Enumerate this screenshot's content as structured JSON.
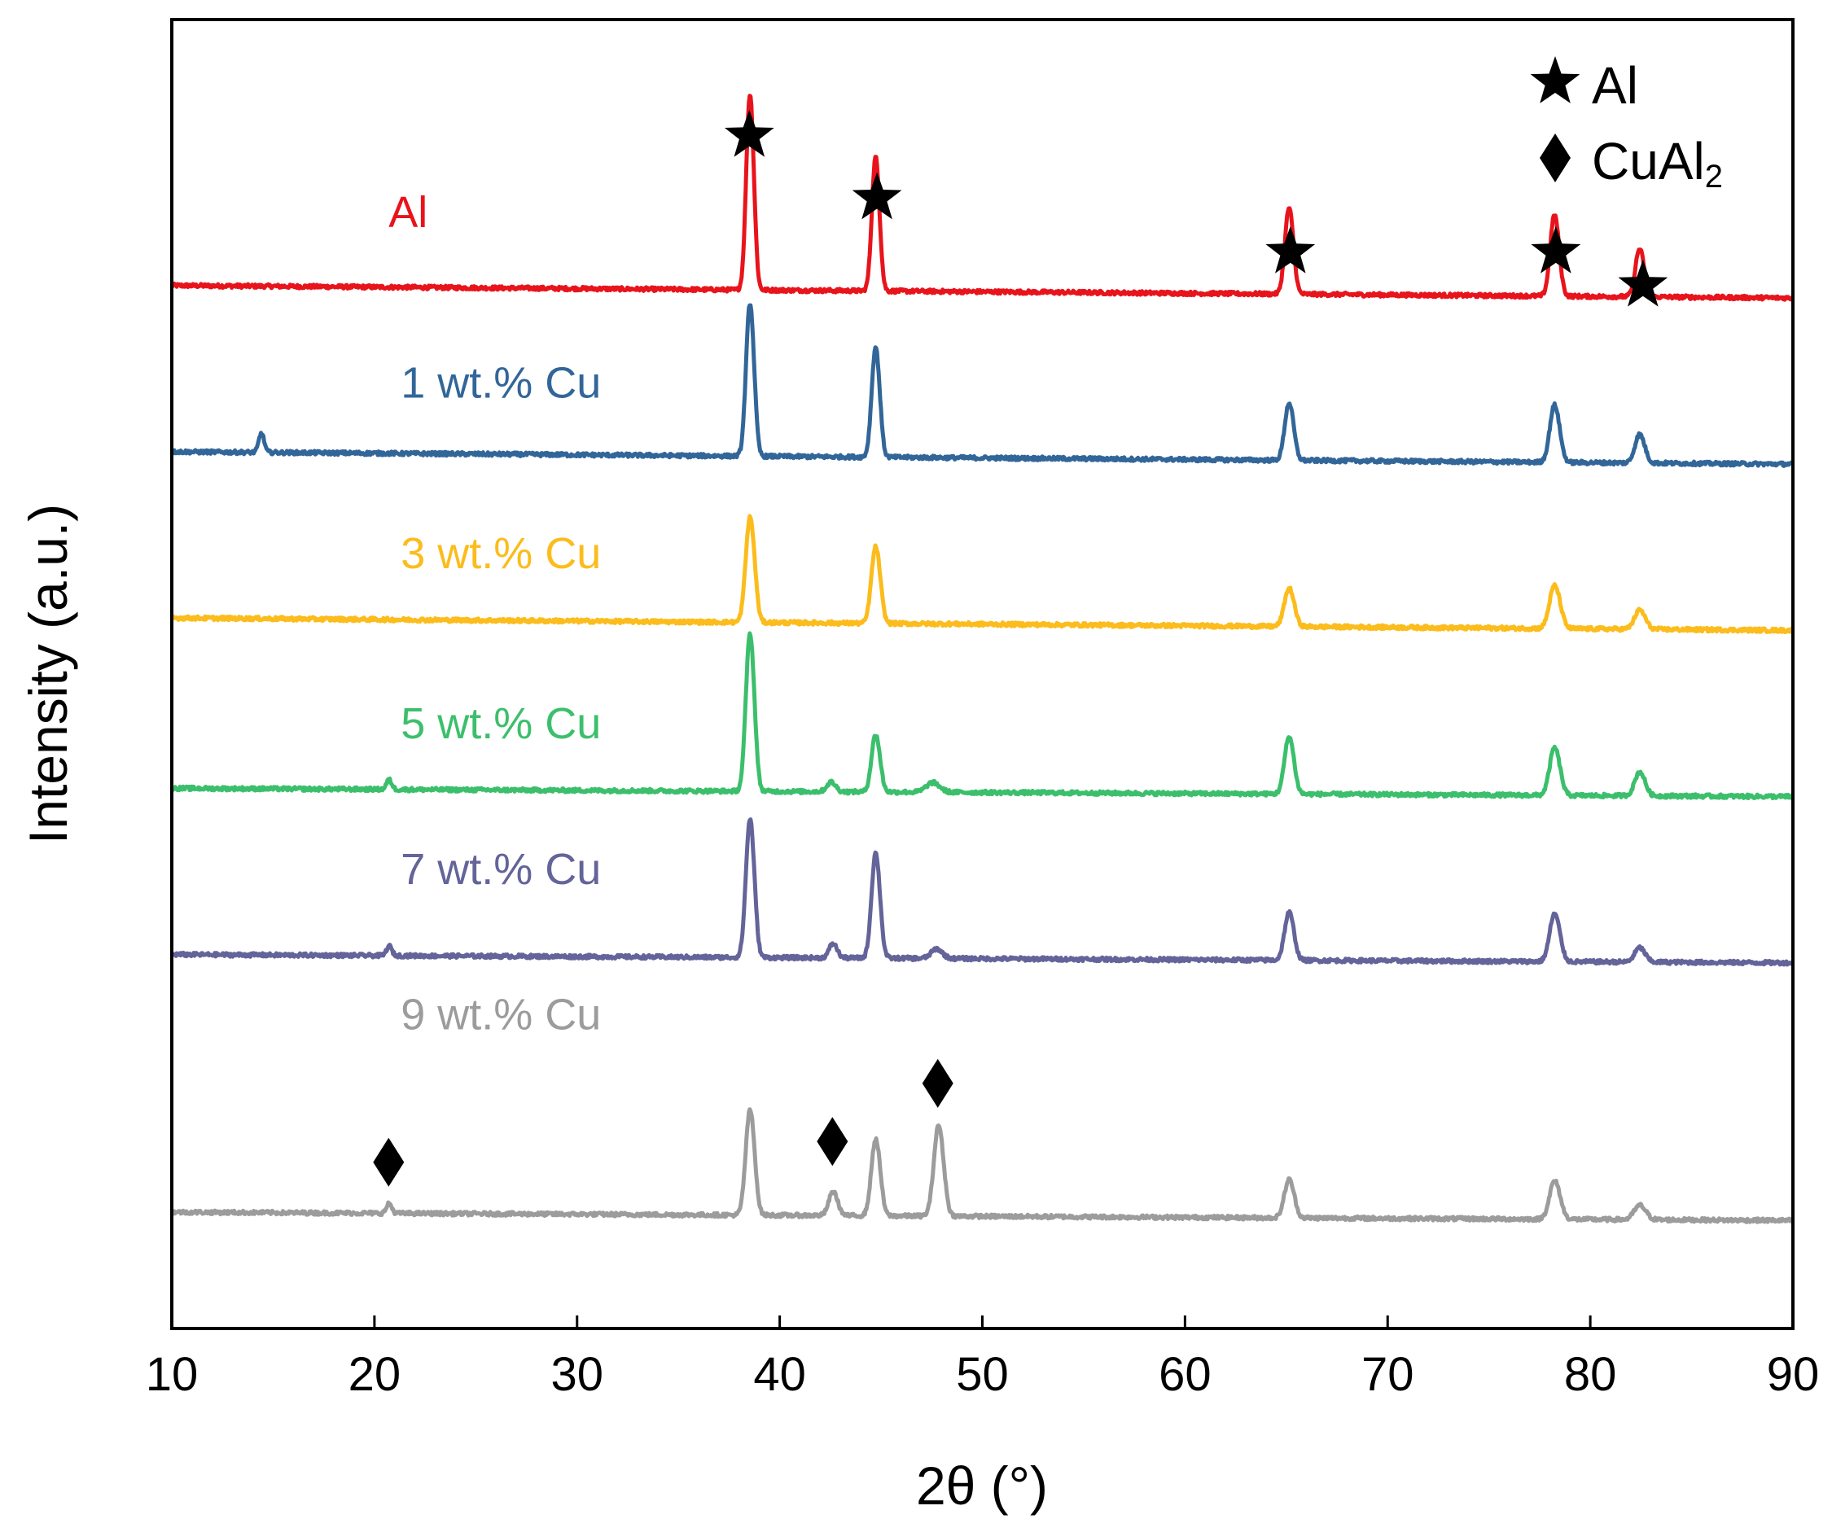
{
  "chart_data": {
    "type": "line",
    "title": "",
    "xlabel": "2θ (°)",
    "ylabel": "Intensity (a.u.)",
    "xlim": [
      10,
      90
    ],
    "ylim": [
      0,
      3.15
    ],
    "xticks": [
      "10",
      "20",
      "30",
      "40",
      "50",
      "60",
      "70",
      "80",
      "90"
    ],
    "y_ticks_shown": false,
    "grid": false,
    "legend": {
      "position": "top-right",
      "entries": [
        {
          "marker": "star-icon",
          "label": "Al",
          "subscript": ""
        },
        {
          "marker": "diamond-icon",
          "label": "CuAl",
          "subscript": "2"
        }
      ]
    },
    "series": [
      {
        "name": "Al",
        "color": "#e8141c",
        "baseline_start": 2.51,
        "baseline_end": 2.48,
        "peaks": [
          {
            "x": 38.5,
            "height": 0.41,
            "width": 0.17
          },
          {
            "x": 44.7,
            "height": 0.28,
            "width": 0.17
          },
          {
            "x": 65.1,
            "height": 0.18,
            "width": 0.19
          },
          {
            "x": 78.2,
            "height": 0.17,
            "width": 0.2
          },
          {
            "x": 82.4,
            "height": 0.1,
            "width": 0.2
          }
        ]
      },
      {
        "name": "1 wt.% Cu",
        "color": "#326699",
        "baseline_start": 2.11,
        "baseline_end": 2.08,
        "peaks": [
          {
            "x": 14.4,
            "height": 0.04,
            "width": 0.12
          },
          {
            "x": 38.5,
            "height": 0.32,
            "width": 0.18
          },
          {
            "x": 44.7,
            "height": 0.23,
            "width": 0.18
          },
          {
            "x": 65.1,
            "height": 0.12,
            "width": 0.2
          },
          {
            "x": 78.2,
            "height": 0.12,
            "width": 0.22
          },
          {
            "x": 82.4,
            "height": 0.06,
            "width": 0.22
          }
        ]
      },
      {
        "name": "3 wt.% Cu",
        "color": "#fbbc1c",
        "baseline_start": 1.71,
        "baseline_end": 1.68,
        "peaks": [
          {
            "x": 38.5,
            "height": 0.22,
            "width": 0.2
          },
          {
            "x": 44.7,
            "height": 0.16,
            "width": 0.2
          },
          {
            "x": 65.1,
            "height": 0.08,
            "width": 0.22
          },
          {
            "x": 78.2,
            "height": 0.09,
            "width": 0.24
          },
          {
            "x": 82.4,
            "height": 0.04,
            "width": 0.24
          }
        ]
      },
      {
        "name": "5 wt.% Cu",
        "color": "#3cbf6c",
        "baseline_start": 1.3,
        "baseline_end": 1.28,
        "peaks": [
          {
            "x": 20.7,
            "height": 0.02,
            "width": 0.12
          },
          {
            "x": 38.5,
            "height": 0.33,
            "width": 0.19
          },
          {
            "x": 42.5,
            "height": 0.02,
            "width": 0.2
          },
          {
            "x": 44.7,
            "height": 0.12,
            "width": 0.19
          },
          {
            "x": 47.5,
            "height": 0.02,
            "width": 0.3
          },
          {
            "x": 65.1,
            "height": 0.12,
            "width": 0.21
          },
          {
            "x": 78.2,
            "height": 0.1,
            "width": 0.23
          },
          {
            "x": 82.4,
            "height": 0.05,
            "width": 0.23
          }
        ]
      },
      {
        "name": "7 wt.% Cu",
        "color": "#64649a",
        "baseline_start": 0.9,
        "baseline_end": 0.88,
        "peaks": [
          {
            "x": 20.7,
            "height": 0.02,
            "width": 0.12
          },
          {
            "x": 38.5,
            "height": 0.29,
            "width": 0.19
          },
          {
            "x": 42.6,
            "height": 0.03,
            "width": 0.18
          },
          {
            "x": 44.7,
            "height": 0.22,
            "width": 0.19
          },
          {
            "x": 47.7,
            "height": 0.02,
            "width": 0.25
          },
          {
            "x": 65.1,
            "height": 0.1,
            "width": 0.21
          },
          {
            "x": 78.2,
            "height": 0.1,
            "width": 0.23
          },
          {
            "x": 82.4,
            "height": 0.03,
            "width": 0.23
          }
        ]
      },
      {
        "name": "9 wt.% Cu",
        "color": "#9c9c9c",
        "baseline_start": 0.28,
        "baseline_end": 0.26,
        "peaks": [
          {
            "x": 20.7,
            "height": 0.02,
            "width": 0.12
          },
          {
            "x": 38.5,
            "height": 0.22,
            "width": 0.2
          },
          {
            "x": 42.6,
            "height": 0.05,
            "width": 0.2
          },
          {
            "x": 44.7,
            "height": 0.16,
            "width": 0.2
          },
          {
            "x": 47.8,
            "height": 0.19,
            "width": 0.22
          },
          {
            "x": 65.1,
            "height": 0.08,
            "width": 0.22
          },
          {
            "x": 78.2,
            "height": 0.08,
            "width": 0.24
          },
          {
            "x": 82.4,
            "height": 0.03,
            "width": 0.26
          }
        ]
      }
    ],
    "peak_markers": [
      {
        "type": "star-icon",
        "phase": "Al",
        "x": 38.5,
        "y": 2.87
      },
      {
        "type": "star-icon",
        "phase": "Al",
        "x": 44.8,
        "y": 2.72
      },
      {
        "type": "star-icon",
        "phase": "Al",
        "x": 65.2,
        "y": 2.59
      },
      {
        "type": "star-icon",
        "phase": "Al",
        "x": 78.3,
        "y": 2.59
      },
      {
        "type": "star-icon",
        "phase": "Al",
        "x": 82.6,
        "y": 2.51
      },
      {
        "type": "diamond-icon",
        "phase": "CuAl2",
        "x": 20.7,
        "y": 0.4
      },
      {
        "type": "diamond-icon",
        "phase": "CuAl2",
        "x": 42.6,
        "y": 0.45
      },
      {
        "type": "diamond-icon",
        "phase": "CuAl2",
        "x": 47.8,
        "y": 0.59
      }
    ],
    "series_labels": [
      {
        "series": "Al",
        "x": 20.7,
        "y": 2.65
      },
      {
        "series": "1 wt.% Cu",
        "x": 21.3,
        "y": 2.24
      },
      {
        "series": "3 wt.% Cu",
        "x": 21.3,
        "y": 1.83
      },
      {
        "series": "5 wt.% Cu",
        "x": 21.3,
        "y": 1.42
      },
      {
        "series": "7 wt.% Cu",
        "x": 21.3,
        "y": 1.07
      },
      {
        "series": "9 wt.% Cu",
        "x": 21.3,
        "y": 0.72
      }
    ]
  }
}
